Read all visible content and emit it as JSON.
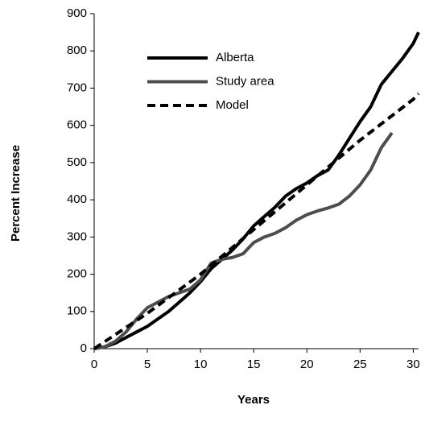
{
  "chart_data": {
    "type": "line",
    "x_label": "Years",
    "y_label": "Percent Increase",
    "xlim": [
      0,
      30.5
    ],
    "xticks": [
      0,
      5,
      10,
      15,
      20,
      25,
      30
    ],
    "ylim": [
      0,
      900
    ],
    "yticks": [
      0,
      100,
      200,
      300,
      400,
      500,
      600,
      700,
      800,
      900
    ],
    "grid": false,
    "legend": "upper left",
    "series": [
      {
        "name": "Alberta",
        "color": "#000000",
        "dash": "solid",
        "width": 4,
        "x": [
          0,
          1,
          2,
          3,
          4,
          5,
          6,
          7,
          8,
          9,
          10,
          11,
          12,
          13,
          14,
          15,
          16,
          17,
          18,
          19,
          20,
          21,
          22,
          23,
          24,
          25,
          26,
          27,
          28,
          29,
          30,
          30.5
        ],
        "values": [
          0,
          5,
          15,
          30,
          45,
          60,
          80,
          100,
          125,
          150,
          180,
          215,
          240,
          265,
          295,
          330,
          355,
          380,
          410,
          430,
          445,
          465,
          480,
          520,
          565,
          610,
          650,
          710,
          745,
          780,
          820,
          850
        ]
      },
      {
        "name": "Study area",
        "color": "#4d4d4d",
        "dash": "solid",
        "width": 4,
        "x": [
          0,
          1,
          2,
          3,
          4,
          5,
          6,
          7,
          8,
          9,
          10,
          11,
          12,
          13,
          14,
          15,
          16,
          17,
          18,
          19,
          20,
          21,
          22,
          23,
          24,
          25,
          26,
          27,
          28
        ],
        "values": [
          0,
          5,
          20,
          45,
          80,
          110,
          125,
          140,
          150,
          160,
          185,
          230,
          240,
          245,
          255,
          285,
          300,
          310,
          325,
          345,
          360,
          370,
          378,
          388,
          410,
          440,
          480,
          540,
          580
        ]
      },
      {
        "name": "Model",
        "color": "#000000",
        "dash": "dashed",
        "width": 4,
        "x": [
          0,
          5,
          10,
          15,
          20,
          25,
          30,
          30.5
        ],
        "values": [
          0,
          95,
          200,
          320,
          440,
          560,
          670,
          685
        ]
      }
    ]
  }
}
